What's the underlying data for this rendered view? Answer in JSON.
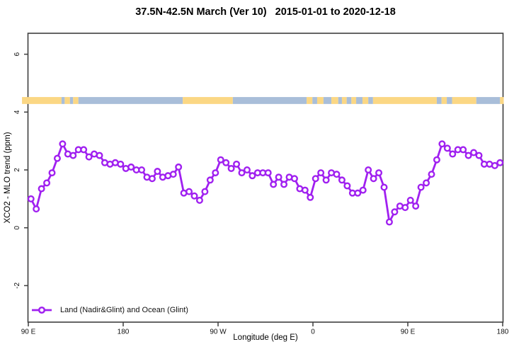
{
  "title": "37.5N-42.5N March (Ver 10)   2015-01-01 to 2020-12-18",
  "colors": {
    "line": "#A020F0",
    "land": "#FBD784",
    "ocean": "#A9BED9",
    "axis": "#3F3F3F",
    "tick_text": "#111111",
    "background": "#FFFFFF"
  },
  "chart_data": {
    "type": "line",
    "title": "37.5N-42.5N March (Ver 10)   2015-01-01 to 2020-12-18",
    "xlabel": "Longitude (deg E)",
    "ylabel": "XCO2 - MLO trend (ppm)",
    "x_axis_note": "axis degrees run 90E through 180, 90W, 0, 90E to 180 (90 to 540 continuous deg E)",
    "xlim_axis_degrees": [
      90,
      540
    ],
    "ylim": [
      -3.3,
      6.7
    ],
    "grid": false,
    "x_ticks": [
      {
        "pos": 90,
        "label": "90 E"
      },
      {
        "pos": 180,
        "label": "180"
      },
      {
        "pos": 270,
        "label": "90 W"
      },
      {
        "pos": 360,
        "label": "0"
      },
      {
        "pos": 450,
        "label": "90 E"
      },
      {
        "pos": 540,
        "label": "180"
      }
    ],
    "y_ticks": [
      {
        "pos": -2,
        "label": "-2"
      },
      {
        "pos": 0,
        "label": "0"
      },
      {
        "pos": 2,
        "label": "2"
      },
      {
        "pos": 4,
        "label": "4"
      },
      {
        "pos": 6,
        "label": "6"
      }
    ],
    "legend": {
      "position": "bottom-left",
      "entries": [
        {
          "label": "Land (Nadir&Glint) and Ocean (Glint)",
          "color": "#A020F0",
          "marker": "open-circle"
        }
      ]
    },
    "series": [
      {
        "name": "Land (Nadir&Glint) and Ocean (Glint)",
        "color": "#A020F0",
        "marker": "open-circle",
        "x": [
          92.5,
          97.5,
          102.5,
          107.5,
          112.5,
          117.5,
          122.5,
          127.5,
          132.5,
          137.5,
          142.5,
          147.5,
          152.5,
          157.5,
          162.5,
          167.5,
          172.5,
          177.5,
          182.5,
          187.5,
          192.5,
          197.5,
          202.5,
          207.5,
          212.5,
          217.5,
          222.5,
          227.5,
          232.5,
          237.5,
          242.5,
          247.5,
          252.5,
          257.5,
          262.5,
          267.5,
          272.5,
          277.5,
          282.5,
          287.5,
          292.5,
          297.5,
          302.5,
          307.5,
          312.5,
          317.5,
          322.5,
          327.5,
          332.5,
          337.5,
          342.5,
          347.5,
          352.5,
          357.5,
          362.5,
          367.5,
          372.5,
          377.5,
          382.5,
          387.5,
          392.5,
          397.5,
          402.5,
          407.5,
          412.5,
          417.5,
          422.5,
          427.5,
          432.5,
          437.5,
          442.5,
          447.5,
          452.5,
          457.5,
          462.5,
          467.5,
          472.5,
          477.5,
          482.5,
          487.5,
          492.5,
          497.5,
          502.5,
          507.5,
          512.5,
          517.5,
          522.5,
          527.5,
          532.5,
          537.5
        ],
        "values": [
          1.0,
          0.65,
          1.35,
          1.55,
          1.9,
          2.4,
          2.9,
          2.55,
          2.5,
          2.7,
          2.7,
          2.45,
          2.55,
          2.5,
          2.25,
          2.2,
          2.25,
          2.2,
          2.05,
          2.1,
          2.0,
          2.0,
          1.75,
          1.7,
          1.95,
          1.75,
          1.8,
          1.85,
          2.1,
          1.2,
          1.25,
          1.1,
          0.95,
          1.25,
          1.65,
          1.9,
          2.35,
          2.25,
          2.05,
          2.2,
          1.9,
          2.0,
          1.8,
          1.9,
          1.9,
          1.9,
          1.5,
          1.75,
          1.5,
          1.75,
          1.7,
          1.35,
          1.3,
          1.05,
          1.7,
          1.9,
          1.65,
          1.9,
          1.85,
          1.65,
          1.45,
          1.2,
          1.2,
          1.3,
          2.0,
          1.7,
          1.9,
          1.4,
          0.2,
          0.55,
          0.75,
          0.7,
          0.95,
          0.75,
          1.4,
          1.55,
          1.85,
          2.35,
          2.9,
          2.75,
          2.55,
          2.7,
          2.7,
          2.5,
          2.6,
          2.5,
          2.2,
          2.2,
          2.15,
          2.25
        ]
      }
    ],
    "land_ocean_strip": {
      "description": "coastline strip: land vs ocean along the latitude band",
      "y_top": 4.52,
      "y_bottom": 4.28,
      "land_color": "#FBD784",
      "ocean_color": "#A9BED9",
      "segments": [
        {
          "type": "land",
          "from": 84,
          "to": 121.5
        },
        {
          "type": "ocean",
          "from": 121.5,
          "to": 124.5
        },
        {
          "type": "land",
          "from": 124.5,
          "to": 129.5
        },
        {
          "type": "ocean",
          "from": 129.5,
          "to": 132.5
        },
        {
          "type": "land",
          "from": 132.5,
          "to": 137.5
        },
        {
          "type": "ocean",
          "from": 137.5,
          "to": 236.5
        },
        {
          "type": "land",
          "from": 236.5,
          "to": 284
        },
        {
          "type": "ocean",
          "from": 284,
          "to": 354
        },
        {
          "type": "land",
          "from": 354,
          "to": 359.5
        },
        {
          "type": "ocean",
          "from": 359.5,
          "to": 364
        },
        {
          "type": "land",
          "from": 364,
          "to": 370
        },
        {
          "type": "ocean",
          "from": 370,
          "to": 377.5
        },
        {
          "type": "land",
          "from": 377.5,
          "to": 384
        },
        {
          "type": "ocean",
          "from": 384,
          "to": 387.5
        },
        {
          "type": "land",
          "from": 387.5,
          "to": 392
        },
        {
          "type": "ocean",
          "from": 392,
          "to": 396.5
        },
        {
          "type": "land",
          "from": 396.5,
          "to": 401
        },
        {
          "type": "ocean",
          "from": 401,
          "to": 407
        },
        {
          "type": "land",
          "from": 407,
          "to": 412.5
        },
        {
          "type": "ocean",
          "from": 412.5,
          "to": 417
        },
        {
          "type": "land",
          "from": 417,
          "to": 477.5
        },
        {
          "type": "ocean",
          "from": 477.5,
          "to": 482
        },
        {
          "type": "land",
          "from": 482,
          "to": 487
        },
        {
          "type": "ocean",
          "from": 487,
          "to": 492
        },
        {
          "type": "land",
          "from": 492,
          "to": 515
        },
        {
          "type": "ocean",
          "from": 515,
          "to": 537.5
        },
        {
          "type": "land",
          "from": 537.5,
          "to": 541
        }
      ]
    }
  }
}
